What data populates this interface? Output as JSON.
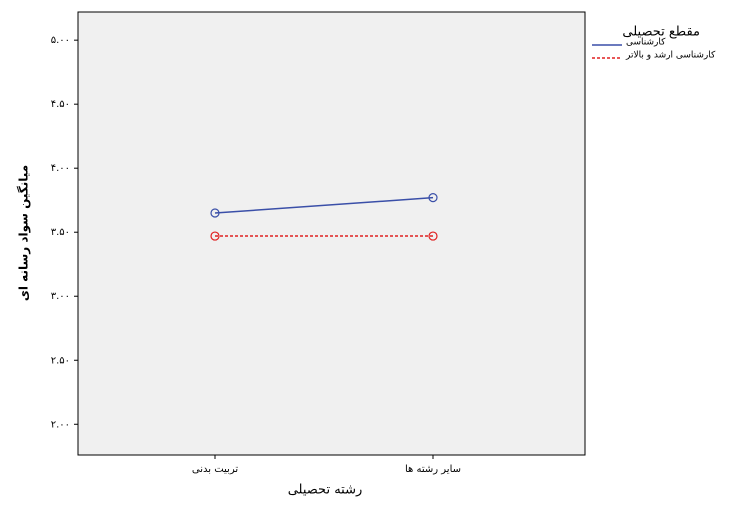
{
  "chart_data": {
    "type": "line",
    "x_label": "رشته تحصیلی",
    "y_label": "میانگین سواد رسانه ای",
    "legend_title": "مقطع تحصیلی",
    "categories": [
      "تربیت بدنی",
      "سایر رشته ها"
    ],
    "series": [
      {
        "name": "کارشناسی",
        "color": "#3a4fa8",
        "dash": "solid",
        "values": [
          3.65,
          3.77
        ]
      },
      {
        "name": "کارشناسی ارشد و بالاتر",
        "color": "#e02020",
        "dash": "dotted",
        "values": [
          3.47,
          3.47
        ]
      }
    ],
    "ylim": [
      1.76,
      5.22
    ],
    "yticks": [
      {
        "value": 2.0,
        "label": "۲.۰۰"
      },
      {
        "value": 2.5,
        "label": "۲.۵۰"
      },
      {
        "value": 3.0,
        "label": "۳.۰۰"
      },
      {
        "value": 3.5,
        "label": "۳.۵۰"
      },
      {
        "value": 4.0,
        "label": "۴.۰۰"
      },
      {
        "value": 4.5,
        "label": "۴.۵۰"
      },
      {
        "value": 5.0,
        "label": "۵.۰۰"
      }
    ],
    "legend": "top-right"
  }
}
